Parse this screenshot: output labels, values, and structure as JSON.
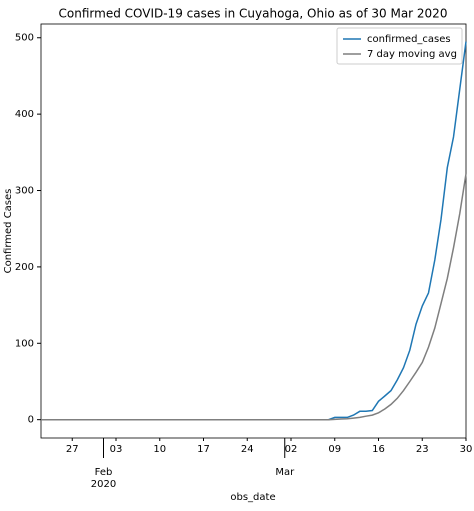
{
  "chart_data": {
    "type": "line",
    "title": "Confirmed COVID-19 cases in Cuyahoga, Ohio as of 30 Mar 2020",
    "x_label": "obs_date",
    "y_label": "Confirmed Cases",
    "x": [
      "2020-01-22",
      "2020-03-08",
      "2020-03-09",
      "2020-03-10",
      "2020-03-11",
      "2020-03-12",
      "2020-03-13",
      "2020-03-14",
      "2020-03-15",
      "2020-03-16",
      "2020-03-17",
      "2020-03-18",
      "2020-03-19",
      "2020-03-20",
      "2020-03-21",
      "2020-03-22",
      "2020-03-23",
      "2020-03-24",
      "2020-03-25",
      "2020-03-26",
      "2020-03-27",
      "2020-03-28",
      "2020-03-29",
      "2020-03-30"
    ],
    "series": [
      {
        "name": "confirmed_cases",
        "color": "#1f77b4",
        "values": [
          0,
          0,
          3,
          3,
          3,
          6,
          11,
          11,
          12,
          24,
          31,
          38,
          52,
          68,
          91,
          125,
          149,
          166,
          209,
          262,
          330,
          370,
          433,
          495
        ]
      },
      {
        "name": "7 day moving avg",
        "color": "#7f7f7f",
        "values": [
          0,
          0,
          0.4,
          0.9,
          1.3,
          2,
          3,
          4.5,
          6,
          9,
          14,
          20,
          28,
          38,
          50,
          62,
          75,
          95,
          120,
          152,
          185,
          225,
          270,
          322
        ]
      }
    ],
    "xlim": [
      "2020-01-22",
      "2020-03-30"
    ],
    "xticks": [
      {
        "value": "2020-01-27",
        "label": "27"
      },
      {
        "value": "2020-02-03",
        "label": "03"
      },
      {
        "value": "2020-02-10",
        "label": "10"
      },
      {
        "value": "2020-02-17",
        "label": "17"
      },
      {
        "value": "2020-02-24",
        "label": "24"
      },
      {
        "value": "2020-03-02",
        "label": "02"
      },
      {
        "value": "2020-03-09",
        "label": "09"
      },
      {
        "value": "2020-03-16",
        "label": "16"
      },
      {
        "value": "2020-03-23",
        "label": "23"
      },
      {
        "value": "2020-03-30",
        "label": "30"
      }
    ],
    "x_major_ticks": [
      {
        "value": "2020-02-01",
        "label": "Feb",
        "year": "2020"
      },
      {
        "value": "2020-03-01",
        "label": "Mar"
      }
    ],
    "ylim": [
      -24,
      518
    ],
    "yticks": [
      0,
      100,
      200,
      300,
      400,
      500
    ],
    "legend": "upper right"
  }
}
